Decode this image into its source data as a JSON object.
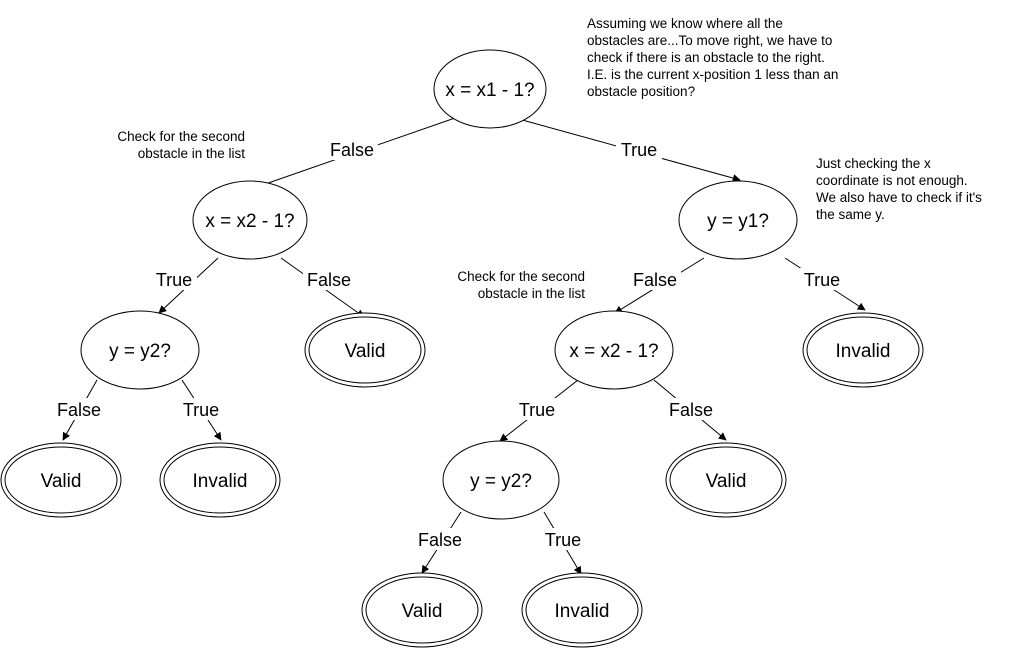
{
  "nodes": {
    "root": "x = x1 - 1?",
    "left_q": "x = x2 - 1?",
    "right_q": "y = y1?",
    "left_left_q": "y = y2?",
    "left_right_leaf": "Valid",
    "right_left_q": "x = x2 - 1?",
    "right_right_leaf": "Invalid",
    "ll_false_leaf": "Valid",
    "ll_true_leaf": "Invalid",
    "rl_left_q": "y = y2?",
    "rl_false_leaf": "Valid",
    "rll_false_leaf": "Valid",
    "rll_true_leaf": "Invalid"
  },
  "edges": {
    "root_false": "False",
    "root_true": "True",
    "left_true": "True",
    "left_false": "False",
    "ll_false": "False",
    "ll_true": "True",
    "right_false": "False",
    "right_true": "True",
    "rl_true": "True",
    "rl_false": "False",
    "rll_false": "False",
    "rll_true": "True"
  },
  "notes": {
    "top": [
      "Assuming we know where all the",
      "obstacles are...To move right, we have to",
      "check if there is an obstacle to the right.",
      "I.E. is the current x-position 1 less than an",
      "obstacle position?"
    ],
    "left": [
      "Check for the second",
      "obstacle in the list"
    ],
    "middle": [
      "Check for the second",
      "obstacle in the list"
    ],
    "right": [
      "Just checking the x",
      "coordinate is not enough.",
      "We also have to check if it's",
      "the same y."
    ]
  }
}
